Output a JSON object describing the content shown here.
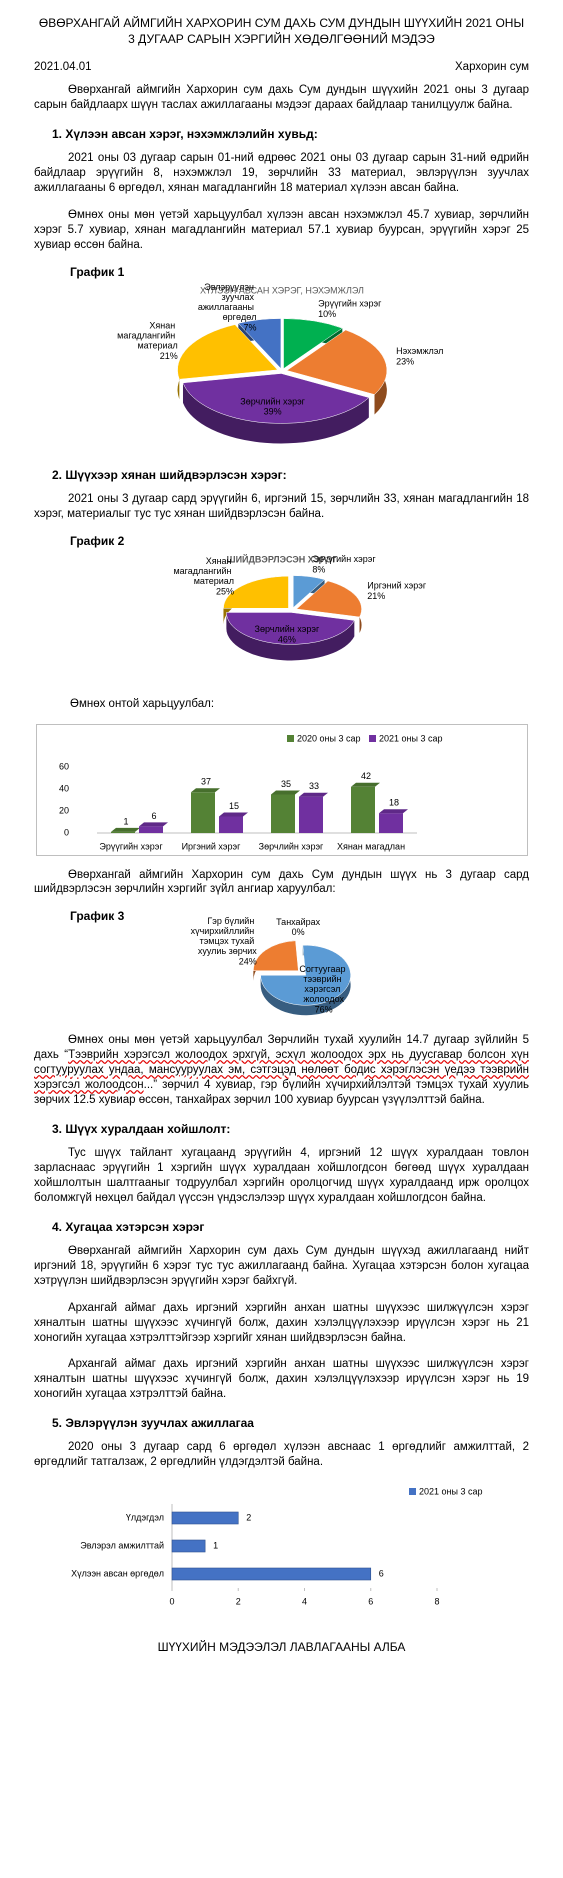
{
  "header": {
    "title": "ӨВӨРХАНГАЙ АЙМГИЙН ХАРХОРИН СУМ ДАХЬ СУМ ДУНДЫН ШҮҮХИЙН 2021 ОНЫ 3 ДУГААР САРЫН ХЭРГИЙН ХӨДӨЛГӨӨНИЙ МЭДЭЭ",
    "date": "2021.04.01",
    "place": "Хархорин сум"
  },
  "intro": "Өвөрхангай аймгийн Хархорин сум дахь Сум дундын шүүхийн 2021 оны 3 дугаар сарын байдлаарх шүүн таслах ажиллагааны мэдээг дараах байдлаар танилцуулж байна.",
  "sections": [
    {
      "heading": "1.  Хүлээн авсан хэрэг, нэхэмжлэлийн хувьд:",
      "paragraphs": [
        "2021 оны 03 дугаар сарын 01-ний өдрөөс 2021 оны 03 дугаар сарын 31-ний өдрийн байдлаар эрүүгийн 8, нэхэмжлэл 19, зөрчлийн 33 материал, эвлэрүүлэн зуучлах ажиллагааны 6 өргөдөл, хянан магадлангийн 18 материал хүлээн авсан байна.",
        "Өмнөх оны мөн үетэй харьцуулбал хүлээн авсан нэхэмжлэл 45.7 хувиар, зөрчлийн хэрэг 5.7 хувиар, хянан магадлангийн материал 57.1 хувиар буурсан, эрүүгийн хэрэг 25 хувиар өссөн байна."
      ]
    },
    {
      "heading": "2.  Шүүхээр хянан шийдвэрлэсэн хэрэг:",
      "paragraphs": [
        "2021 оны 3 дугаар сард эрүүгийн 6, иргэний 15, зөрчлийн 33, хянан магадлангийн 18 хэрэг, материалыг тус тус хянан шийдвэрлэсэн байна.",
        "Өмнөх онтой харьцуулбал:",
        "Өвөрхангай аймгийн Хархорин сум дахь Сум дундын шүүх нь 3 дугаар сард шийдвэрлэсэн зөрчлийн хэргийг зүйл ангиар харуулбал:"
      ],
      "comparison": {
        "before": "Өмнөх оны мөн үетэй харьцуулбал Зөрчлийн тухай хуулийн 14.7 дугаар зүйлийн 5 дахь “",
        "underlined": "Тээврийн хэрэгсэл жолоодох эрхгүй, эсхүл жолоодох эрх нь дуусгавар болсон хүн согтууруулах ундаа, мансууруулах эм, сэтгэцэд нөлөөт бодис хэрэглэсэн үедээ тээврийн хэрэгсэл жолоодсон",
        "after": "...” зөрчил 4 хувиар, гэр бүлийн хүчирхийлэлтэй тэмцэх тухай хуулиь зөрчих 12.5 хувиар өссөн, танхайрах зөрчил 100 хувиар буурсан үзүүлэлттэй байна."
      }
    },
    {
      "heading": "3.  Шүүх хуралдаан хойшлолт:",
      "paragraphs": [
        "Тус шүүх тайлант хугацаанд эрүүгийн 4, иргэний 12 шүүх хуралдаан товлон зарласнаас эрүүгийн 1 хэргийн шүүх хуралдаан хойшлогдсон бөгөөд шүүх хуралдаан хойшлолтын шалтгааныг тодруулбал хэргийн оролцогчид шүүх хуралдаанд ирж оролцох боломжгүй нөхцөл байдал үүссэн үндэслэлээр шүүх хуралдаан хойшлогдсон байна."
      ]
    },
    {
      "heading": "4.  Хугацаа хэтэрсэн хэрэг",
      "paragraphs": [
        "Өвөрхангай аймгийн Хархорин сум дахь Сум дундын шүүхэд ажиллагаанд нийт иргэний 18, эрүүгийн 6 хэрэг тус тус ажиллагаанд байна. Хугацаа хэтэрсэн болон хугацаа хэтрүүлэн шийдвэрлэсэн эрүүгийн хэрэг байхгүй.",
        "Архангай аймаг дахь иргэний хэргийн анхан шатны шүүхээс шилжүүлсэн хэрэг хяналтын шатны шүүхээс хүчингүй болж, дахин хэлэлцүүлэхээр ирүүлсэн хэрэг нь 21 хоногийн хугацаа хэтрэлттэйгээр хэргийг хянан шийдвэрлэсэн байна.",
        "Архангай аймаг дахь иргэний хэргийн анхан шатны шүүхээс шилжүүлсэн хэрэг хяналтын шатны шүүхээс хүчингүй болж, дахин хэлэлцүүлэхээр ирүүлсэн хэрэг нь 19 хоногийн хугацаа хэтрэлттэй байна."
      ]
    },
    {
      "heading": "5.  Эвлэрүүлэн зуучлах ажиллагаа",
      "paragraphs": [
        "2020 оны 3 дугаар сард 6 өргөдөл хүлээн авснаас 1 өргөдлийг амжилттай, 2 өргөдлийг татгалзаж, 2 өргөдлийн үлдэгдэлтэй байна."
      ]
    }
  ],
  "footer": "ШҮҮХИЙН МЭДЭЭЛЭЛ ЛАВЛАГААНЫ АЛБА",
  "chart_data": [
    {
      "type": "pie",
      "label": "График 1",
      "title": "ХҮЛЭЭН АВСАН ХЭРЭГ, НЭХЭМЖЛЭЛ",
      "categories": [
        "Эрүүгийн хэрэг",
        "Нэхэмжлэл",
        "Зөрчлийн хэрэг",
        "Хянан магадлангийн материал",
        "Эвлэрүүлэн зуучлах ажиллагааны өргөдөл"
      ],
      "values": [
        10,
        23,
        39,
        21,
        7
      ],
      "value_labels": [
        "10%",
        "23%",
        "39%",
        "21%",
        "7%"
      ],
      "colors": [
        "#00b050",
        "#ed7d31",
        "#7030a0",
        "#ffc000",
        "#4472c4"
      ]
    },
    {
      "type": "pie",
      "label": "График 2",
      "title": "ШИЙДВЭРЛЭСЭН ХЭРЭГ",
      "categories": [
        "Эрүүгийн хэрэг",
        "Иргэний хэрэг",
        "Зөрчлийн хэрэг",
        "Хянан магадлангийн материал"
      ],
      "values": [
        8,
        21,
        46,
        25
      ],
      "value_labels": [
        "8%",
        "21%",
        "46%",
        "25%"
      ],
      "colors": [
        "#5b9bd5",
        "#ed7d31",
        "#7030a0",
        "#ffc000"
      ]
    },
    {
      "type": "bar",
      "categories": [
        "Эрүүгийн хэрэг",
        "Иргэний хэрэг",
        "Зөрчлийн хэрэг",
        "Хянан магадлан"
      ],
      "series": [
        {
          "name": "2020 оны 3 сар",
          "color": "#548235",
          "values": [
            1,
            37,
            35,
            42
          ]
        },
        {
          "name": "2021 оны 3 сар",
          "color": "#7030a0",
          "values": [
            6,
            15,
            33,
            18
          ]
        }
      ],
      "ylim": [
        0,
        60
      ],
      "yticks": [
        0,
        20,
        40,
        60
      ]
    },
    {
      "type": "pie",
      "label": "График 3",
      "categories": [
        "Гэр бүлийн хүчирхийллийн тэмцэх тухай хуулиь зөрчих",
        "Танхайрах",
        "Согтуугаар тээврийн хэрэгсэл жолоодох"
      ],
      "values": [
        24,
        0,
        76
      ],
      "value_labels": [
        "24%",
        "0%",
        "76%"
      ],
      "colors": [
        "#ed7d31",
        "#5b9bd5",
        "#5b9bd5"
      ]
    },
    {
      "type": "hbar",
      "categories": [
        "Үлдэгдэл",
        "Эвлэрэл амжилттай",
        "Хүлээн авсан өргөдөл"
      ],
      "series": [
        {
          "name": "2021 оны 3 сар",
          "color": "#4472c4",
          "values": [
            2,
            1,
            6
          ]
        }
      ],
      "xlim": [
        0,
        8
      ],
      "xticks": [
        0,
        2,
        4,
        6,
        8
      ]
    }
  ]
}
